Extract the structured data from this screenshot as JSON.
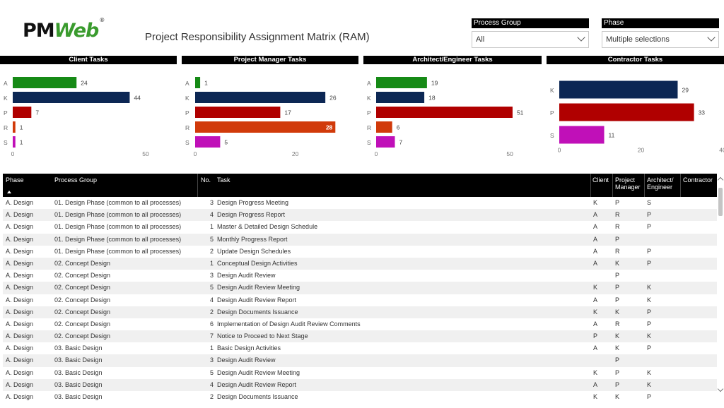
{
  "header": {
    "logo_pm": "PM",
    "logo_web": "Web",
    "logo_reg": "®",
    "title": "Project Responsibility Assignment Matrix (RAM)"
  },
  "filters": {
    "process_group": {
      "label": "Process Group",
      "value": "All"
    },
    "phase": {
      "label": "Phase",
      "value": "Multiple selections"
    }
  },
  "colors": {
    "A": "#168a16",
    "K": "#0c2754",
    "P": "#b00000",
    "R": "#d13a0a",
    "S": "#c010b8"
  },
  "chart_data": [
    {
      "type": "bar",
      "title": "Client Tasks",
      "orientation": "horizontal",
      "categories": [
        "A",
        "K",
        "P",
        "R",
        "S"
      ],
      "values": [
        24,
        44,
        7,
        1,
        1
      ],
      "xlim": [
        0,
        50
      ],
      "xticks": [
        0,
        50
      ]
    },
    {
      "type": "bar",
      "title": "Project Manager Tasks",
      "orientation": "horizontal",
      "categories": [
        "A",
        "K",
        "P",
        "R",
        "S"
      ],
      "values": [
        1,
        26,
        17,
        28,
        5
      ],
      "xlim": [
        0,
        40
      ],
      "xticks": [
        0,
        20
      ]
    },
    {
      "type": "bar",
      "title": "Architect/Engineer Tasks",
      "orientation": "horizontal",
      "categories": [
        "A",
        "K",
        "P",
        "R",
        "S"
      ],
      "values": [
        19,
        18,
        51,
        6,
        7
      ],
      "xlim": [
        0,
        60
      ],
      "xticks": [
        0,
        50
      ]
    },
    {
      "type": "bar",
      "title": "Contractor Tasks",
      "orientation": "horizontal",
      "categories": [
        "K",
        "P",
        "S"
      ],
      "values": [
        29,
        33,
        11
      ],
      "xlim": [
        0,
        40
      ],
      "xticks": [
        0,
        20,
        40
      ]
    }
  ],
  "table": {
    "headers": {
      "phase": "Phase",
      "process_group": "Process Group",
      "no": "No.",
      "task": "Task",
      "client": "Client",
      "pm1": "Project",
      "pm2": "Manager",
      "ae1": "Architect/",
      "ae2": "Engineer",
      "contractor": "Contractor"
    },
    "rows": [
      [
        "A. Design",
        "01. Design Phase (common to all processes)",
        "3",
        "Design Progress Meeting",
        "K",
        "P",
        "S",
        ""
      ],
      [
        "A. Design",
        "01. Design Phase (common to all processes)",
        "4",
        "Design Progress Report",
        "A",
        "R",
        "P",
        ""
      ],
      [
        "A. Design",
        "01. Design Phase (common to all processes)",
        "1",
        "Master & Detailed Design Schedule",
        "A",
        "R",
        "P",
        ""
      ],
      [
        "A. Design",
        "01. Design Phase (common to all processes)",
        "5",
        "Monthly Progress Report",
        "A",
        "P",
        "",
        ""
      ],
      [
        "A. Design",
        "01. Design Phase (common to all processes)",
        "2",
        "Update Design Schedules",
        "A",
        "R",
        "P",
        ""
      ],
      [
        "A. Design",
        "02. Concept Design",
        "1",
        "Conceptual Design Activities",
        "A",
        "K",
        "P",
        ""
      ],
      [
        "A. Design",
        "02. Concept Design",
        "3",
        "Design Audit Review",
        "",
        "P",
        "",
        ""
      ],
      [
        "A. Design",
        "02. Concept Design",
        "5",
        "Design Audit Review Meeting",
        "K",
        "P",
        "K",
        ""
      ],
      [
        "A. Design",
        "02. Concept Design",
        "4",
        "Design Audit Review Report",
        "A",
        "P",
        "K",
        ""
      ],
      [
        "A. Design",
        "02. Concept Design",
        "2",
        "Design Documents Issuance",
        "K",
        "K",
        "P",
        ""
      ],
      [
        "A. Design",
        "02. Concept Design",
        "6",
        "Implementation of Design Audit Review Comments",
        "A",
        "R",
        "P",
        ""
      ],
      [
        "A. Design",
        "02. Concept Design",
        "7",
        "Notice to Proceed to Next Stage",
        "P",
        "K",
        "K",
        ""
      ],
      [
        "A. Design",
        "03. Basic Design",
        "1",
        "Basic Design Activities",
        "A",
        "K",
        "P",
        ""
      ],
      [
        "A. Design",
        "03. Basic Design",
        "3",
        "Design Audit Review",
        "",
        "P",
        "",
        ""
      ],
      [
        "A. Design",
        "03. Basic Design",
        "5",
        "Design Audit Review Meeting",
        "K",
        "P",
        "K",
        ""
      ],
      [
        "A. Design",
        "03. Basic Design",
        "4",
        "Design Audit Review Report",
        "A",
        "P",
        "K",
        ""
      ],
      [
        "A. Design",
        "03. Basic Design",
        "2",
        "Design Documents Issuance",
        "K",
        "K",
        "P",
        ""
      ]
    ]
  }
}
